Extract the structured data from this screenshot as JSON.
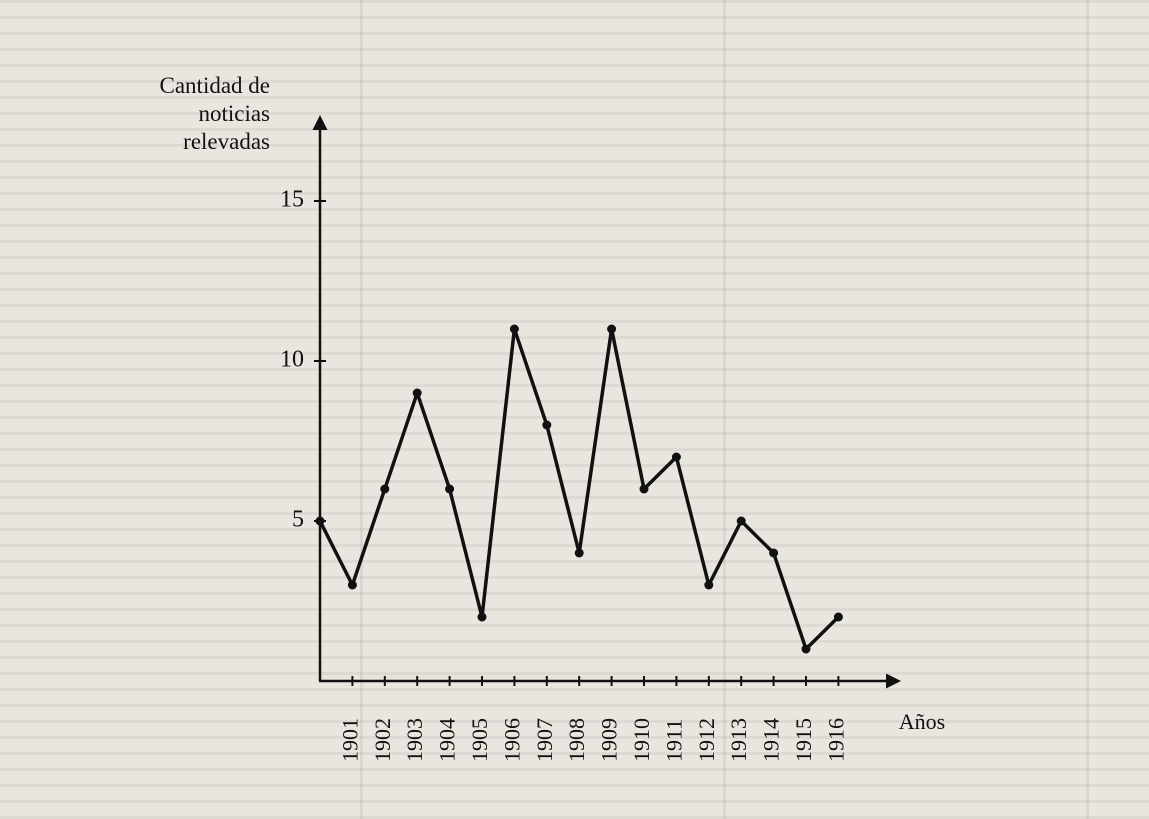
{
  "chart_data": {
    "type": "line",
    "x_label": "Años",
    "y_label": "Cantidad de noticias relevadas",
    "categories": [
      null,
      "1901",
      "1902",
      "1903",
      "1904",
      "1905",
      "1906",
      "1907",
      "1908",
      "1909",
      "1910",
      "1911",
      "1912",
      "1913",
      "1914",
      "1915",
      "1916"
    ],
    "values": [
      5,
      3,
      6,
      9,
      6,
      2,
      11,
      8,
      4,
      11,
      6,
      7,
      3,
      5,
      4,
      1,
      2
    ],
    "color": "#111111",
    "ylim": [
      0,
      17.5
    ],
    "yticks": [
      5,
      10,
      15
    ],
    "grid": false
  }
}
